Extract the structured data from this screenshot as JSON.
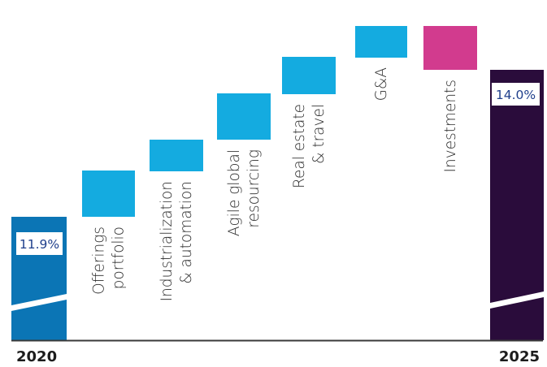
{
  "chart_data": {
    "type": "waterfall",
    "start": {
      "label": "2020",
      "value": 11.9,
      "value_label": "11.9%"
    },
    "end": {
      "label": "2025",
      "value": 14.0,
      "value_label": "14.0%"
    },
    "steps": [
      {
        "label": [
          "Offerings",
          "portfolio"
        ],
        "type": "increase"
      },
      {
        "label": [
          "Industrialization",
          "& automation"
        ],
        "type": "increase"
      },
      {
        "label": [
          "Agile global",
          "resourcing"
        ],
        "type": "increase"
      },
      {
        "label": [
          "Real estate",
          "& travel"
        ],
        "type": "increase"
      },
      {
        "label": [
          "G&A"
        ],
        "type": "increase"
      },
      {
        "label": [
          "Investments"
        ],
        "type": "decrease"
      }
    ],
    "colors": {
      "start_bar": "#0b75b5",
      "increase": "#14abe0",
      "decrease": "#d23b8e",
      "end_bar": "#2a0c3b",
      "value_label_text": "#1f3f8c",
      "axis": "#3a3a3a"
    }
  }
}
